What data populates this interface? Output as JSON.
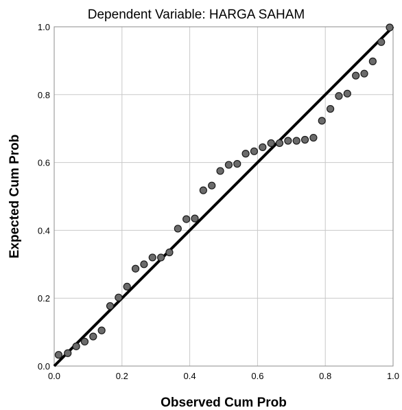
{
  "chart_data": {
    "type": "scatter",
    "title": "Dependent Variable: HARGA SAHAM",
    "xlabel": "Observed Cum Prob",
    "ylabel": "Expected Cum Prob",
    "xlim": [
      0.0,
      1.0
    ],
    "ylim": [
      0.0,
      1.0
    ],
    "x_ticks": [
      "0.0",
      "0.2",
      "0.4",
      "0.6",
      "0.8",
      "1.0"
    ],
    "y_ticks": [
      "0.0",
      "0.2",
      "0.4",
      "0.6",
      "0.8",
      "1.0"
    ],
    "grid": true,
    "reference_line": {
      "from": [
        0.0,
        0.0
      ],
      "to": [
        1.0,
        1.0
      ]
    },
    "colors": {
      "point_fill": "#6b6b6b",
      "point_stroke": "#1a1a1a",
      "line": "#000000",
      "grid": "#c8c8c8"
    },
    "points": [
      {
        "x": 0.013,
        "y": 0.033
      },
      {
        "x": 0.04,
        "y": 0.038
      },
      {
        "x": 0.065,
        "y": 0.058
      },
      {
        "x": 0.09,
        "y": 0.072
      },
      {
        "x": 0.115,
        "y": 0.087
      },
      {
        "x": 0.14,
        "y": 0.105
      },
      {
        "x": 0.165,
        "y": 0.177
      },
      {
        "x": 0.19,
        "y": 0.202
      },
      {
        "x": 0.215,
        "y": 0.234
      },
      {
        "x": 0.24,
        "y": 0.287
      },
      {
        "x": 0.265,
        "y": 0.3
      },
      {
        "x": 0.29,
        "y": 0.32
      },
      {
        "x": 0.315,
        "y": 0.32
      },
      {
        "x": 0.34,
        "y": 0.335
      },
      {
        "x": 0.365,
        "y": 0.405
      },
      {
        "x": 0.39,
        "y": 0.433
      },
      {
        "x": 0.415,
        "y": 0.435
      },
      {
        "x": 0.44,
        "y": 0.518
      },
      {
        "x": 0.465,
        "y": 0.532
      },
      {
        "x": 0.49,
        "y": 0.575
      },
      {
        "x": 0.515,
        "y": 0.593
      },
      {
        "x": 0.54,
        "y": 0.596
      },
      {
        "x": 0.565,
        "y": 0.626
      },
      {
        "x": 0.59,
        "y": 0.633
      },
      {
        "x": 0.615,
        "y": 0.645
      },
      {
        "x": 0.64,
        "y": 0.657
      },
      {
        "x": 0.665,
        "y": 0.657
      },
      {
        "x": 0.69,
        "y": 0.664
      },
      {
        "x": 0.715,
        "y": 0.664
      },
      {
        "x": 0.74,
        "y": 0.667
      },
      {
        "x": 0.765,
        "y": 0.673
      },
      {
        "x": 0.79,
        "y": 0.723
      },
      {
        "x": 0.815,
        "y": 0.758
      },
      {
        "x": 0.84,
        "y": 0.796
      },
      {
        "x": 0.865,
        "y": 0.803
      },
      {
        "x": 0.89,
        "y": 0.856
      },
      {
        "x": 0.915,
        "y": 0.862
      },
      {
        "x": 0.94,
        "y": 0.898
      },
      {
        "x": 0.965,
        "y": 0.955
      },
      {
        "x": 0.99,
        "y": 0.998
      }
    ]
  }
}
